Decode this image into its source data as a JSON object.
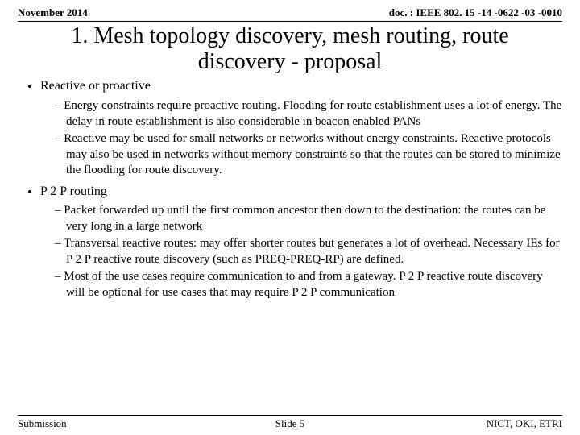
{
  "header": {
    "left": "November 2014",
    "right": "doc. : IEEE 802. 15 -14 -0622 -03 -0010"
  },
  "title": "1. Mesh topology discovery, mesh routing, route discovery - proposal",
  "bullets": [
    {
      "label": "Reactive or proactive",
      "subs": [
        "Energy constraints require proactive routing. Flooding for route establishment uses a lot of energy. The delay in route establishment is also considerable in beacon enabled PANs",
        "Reactive may be used for small networks or networks without energy constraints. Reactive protocols may also be used in networks without memory constraints so that the routes can be stored to minimize the flooding for route discovery."
      ]
    },
    {
      "label": "P 2 P routing",
      "subs": [
        "Packet forwarded up until the first common ancestor then down to the destination: the routes can be very long in a large network",
        "Transversal reactive routes: may offer shorter routes but generates a lot of overhead. Necessary IEs for P 2 P reactive route discovery (such as PREQ-PREQ-RP) are defined.",
        "Most of the use cases require communication to and from a gateway. P 2 P reactive route discovery will be optional for use cases that may require P 2 P communication"
      ]
    }
  ],
  "footer": {
    "left": "Submission",
    "center": "Slide 5",
    "right": "NICT, OKI, ETRI"
  }
}
